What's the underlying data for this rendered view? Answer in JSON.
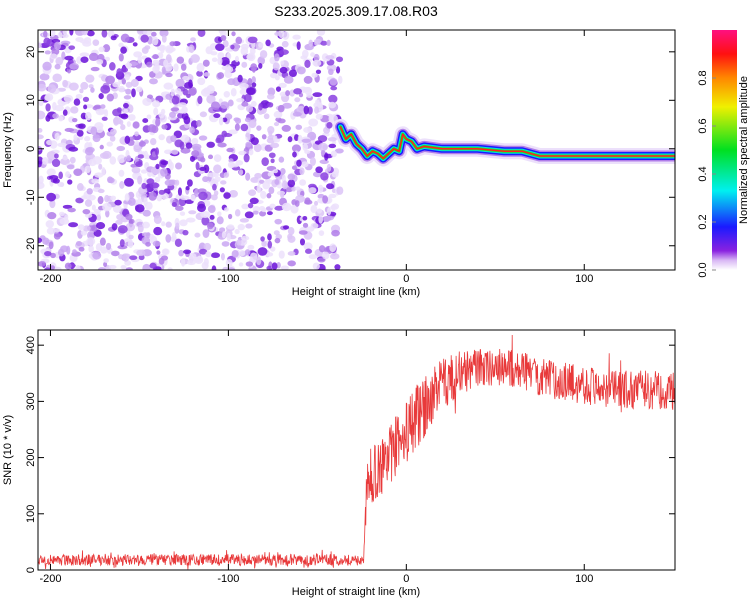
{
  "chart_data": [
    {
      "type": "heatmap",
      "title": "S233.2025.309.17.08.R03",
      "xlabel": "Height of straight line (km)",
      "ylabel": "Frequency (Hz)",
      "xlim": [
        -207,
        151
      ],
      "ylim": [
        -25,
        24.5
      ],
      "xticks": [
        "-200",
        "-100",
        "0",
        "100"
      ],
      "xtickvals": [
        -200,
        -100,
        0,
        100
      ],
      "yticks": [
        "20",
        "10",
        "0",
        "-10",
        "-20"
      ],
      "ytickvals": [
        20,
        10,
        0,
        -10,
        -20
      ],
      "noise_region_x": [
        -207,
        -37
      ],
      "ridge": {
        "x": [
          -37,
          -34,
          -31,
          -28,
          -25,
          -22,
          -19,
          -16,
          -13,
          -10,
          -7,
          -4,
          -2,
          0,
          3,
          6,
          10,
          20,
          40,
          55,
          65,
          75,
          100,
          125,
          151
        ],
        "y": [
          4.5,
          2,
          3,
          1,
          0,
          -1.5,
          -0.5,
          -1,
          -2,
          -1,
          0,
          -0.5,
          3,
          2,
          1.5,
          0,
          0.5,
          0,
          0,
          -0.5,
          -0.5,
          -1.5,
          -1.5,
          -1.5,
          -1.5
        ]
      },
      "colorbar": {
        "label": "Normalized spectral amplitude",
        "ticks": [
          "0.0",
          "0.2",
          "0.4",
          "0.6",
          "0.8"
        ],
        "tickvals": [
          0,
          0.2,
          0.4,
          0.6,
          0.8
        ],
        "range": [
          0,
          1
        ]
      }
    },
    {
      "type": "line",
      "xlabel": "Height of straight line (km)",
      "ylabel": "SNR (10 * v/v)",
      "xlim": [
        -207,
        151
      ],
      "ylim": [
        0,
        427
      ],
      "xticks": [
        "-200",
        "-100",
        "0",
        "100"
      ],
      "xtickvals": [
        -200,
        -100,
        0,
        100
      ],
      "yticks": [
        "0",
        "100",
        "200",
        "300",
        "400"
      ],
      "ytickvals": [
        0,
        100,
        200,
        300,
        400
      ],
      "series": [
        {
          "name": "SNR",
          "color": "#e8393a",
          "x": [
            -207,
            -24,
            -22,
            -15,
            -5,
            5,
            10,
            20,
            30,
            40,
            60,
            80,
            100,
            120,
            140,
            151
          ],
          "mean": [
            18,
            18,
            160,
            180,
            220,
            270,
            290,
            330,
            350,
            360,
            360,
            340,
            330,
            320,
            320,
            320
          ],
          "noise": [
            10,
            10,
            50,
            50,
            55,
            60,
            55,
            45,
            40,
            35,
            35,
            35,
            35,
            35,
            35,
            35
          ]
        }
      ]
    }
  ]
}
